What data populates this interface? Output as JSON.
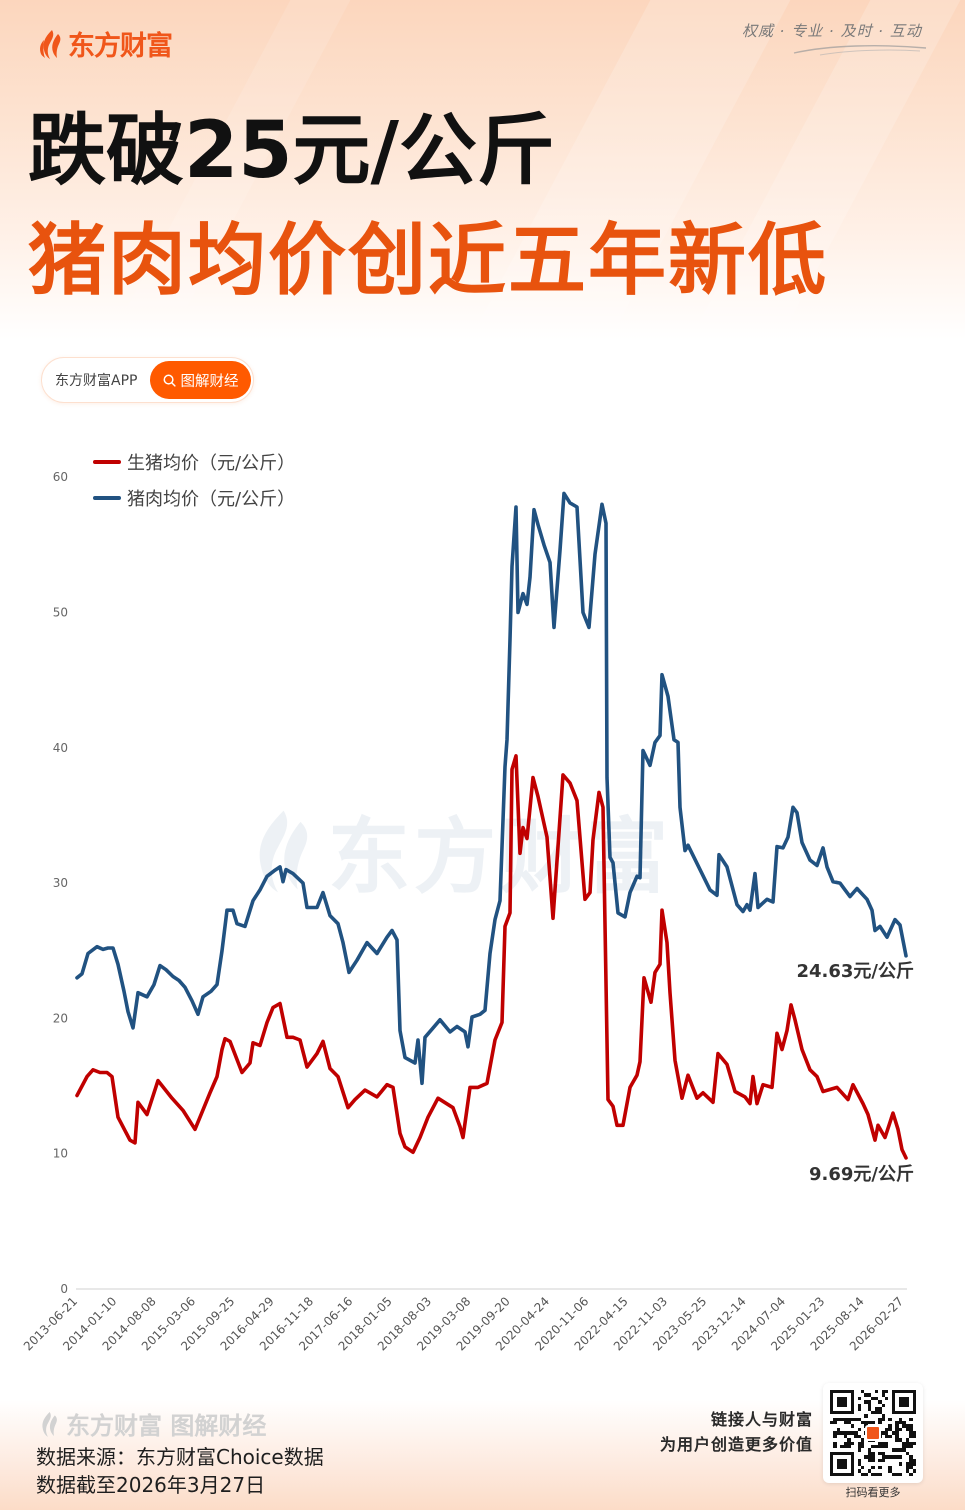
{
  "brand": {
    "logo_text": "东方财富",
    "slogan": "权威 · 专业 · 及时 · 互动",
    "colors": {
      "brand_orange": "#f0561a",
      "headline_orange": "#e8530e",
      "pill_orange": "#ff5a00"
    }
  },
  "headline": {
    "line1": "跌破25元/公斤",
    "line2": "猪肉均价创近五年新低"
  },
  "badge": {
    "left_label": "东方财富APP",
    "right_label": "图解财经",
    "right_icon": "search-icon"
  },
  "watermark": {
    "text": "东方财富"
  },
  "chart_data": {
    "type": "line",
    "title": "",
    "xlabel": "",
    "ylabel": "",
    "ylim": [
      0,
      60
    ],
    "grid": false,
    "legend_position": "top-left",
    "yaxis": {
      "ticks": [
        0,
        10,
        20,
        30,
        40,
        50,
        60
      ]
    },
    "categories": [
      "2013-06-21",
      "2014-01-10",
      "2014-08-08",
      "2015-03-06",
      "2015-09-25",
      "2016-04-29",
      "2016-11-18",
      "2017-06-16",
      "2018-01-05",
      "2018-08-03",
      "2019-03-08",
      "2019-09-20",
      "2020-04-24",
      "2020-11-06",
      "2022-04-15",
      "2022-11-03",
      "2023-05-25",
      "2023-12-14",
      "2024-07-04",
      "2025-01-23",
      "2025-08-14",
      "2026-02-27"
    ],
    "points_format": "[x_offset_px_along_axis (0-830), value]",
    "series": [
      {
        "key": "hog",
        "name": "生猪均价（元/公斤）",
        "color": "#c00000",
        "last_value": 9.69,
        "end_label": "9.69元/公斤",
        "points": [
          [
            1,
            14.3
          ],
          [
            11,
            15.7
          ],
          [
            17,
            16.2
          ],
          [
            24,
            16.0
          ],
          [
            31,
            16.0
          ],
          [
            36,
            15.7
          ],
          [
            42,
            12.7
          ],
          [
            54,
            11.0
          ],
          [
            59,
            10.8
          ],
          [
            62,
            13.8
          ],
          [
            71,
            12.9
          ],
          [
            82,
            15.4
          ],
          [
            96,
            14.1
          ],
          [
            107,
            13.2
          ],
          [
            119,
            11.8
          ],
          [
            124,
            12.7
          ],
          [
            134,
            14.5
          ],
          [
            141,
            15.7
          ],
          [
            146,
            17.7
          ],
          [
            149,
            18.5
          ],
          [
            154,
            18.3
          ],
          [
            166,
            16.0
          ],
          [
            174,
            16.7
          ],
          [
            177,
            18.2
          ],
          [
            184,
            18.0
          ],
          [
            191,
            19.7
          ],
          [
            197,
            20.8
          ],
          [
            204,
            21.1
          ],
          [
            211,
            18.6
          ],
          [
            217,
            18.6
          ],
          [
            224,
            18.4
          ],
          [
            231,
            16.4
          ],
          [
            241,
            17.4
          ],
          [
            247,
            18.3
          ],
          [
            254,
            16.3
          ],
          [
            262,
            15.7
          ],
          [
            272,
            13.4
          ],
          [
            279,
            14.0
          ],
          [
            289,
            14.7
          ],
          [
            301,
            14.2
          ],
          [
            311,
            15.1
          ],
          [
            317,
            14.9
          ],
          [
            324,
            11.5
          ],
          [
            329,
            10.5
          ],
          [
            337,
            10.1
          ],
          [
            344,
            11.2
          ],
          [
            352,
            12.7
          ],
          [
            362,
            14.1
          ],
          [
            377,
            13.4
          ],
          [
            384,
            12.0
          ],
          [
            387,
            11.2
          ],
          [
            394,
            14.9
          ],
          [
            402,
            14.9
          ],
          [
            411,
            15.2
          ],
          [
            419,
            18.4
          ],
          [
            426,
            19.7
          ],
          [
            429,
            26.8
          ],
          [
            434,
            27.8
          ],
          [
            436,
            38.4
          ],
          [
            440,
            39.4
          ],
          [
            444,
            32.2
          ],
          [
            447,
            34.1
          ],
          [
            451,
            33.3
          ],
          [
            457,
            37.8
          ],
          [
            462,
            36.4
          ],
          [
            471,
            33.4
          ],
          [
            477,
            27.4
          ],
          [
            487,
            38.0
          ],
          [
            494,
            37.4
          ],
          [
            501,
            36.1
          ],
          [
            509,
            28.8
          ],
          [
            514,
            29.3
          ],
          [
            517,
            33.2
          ],
          [
            523,
            36.7
          ],
          [
            527,
            35.6
          ],
          [
            532,
            14.0
          ],
          [
            537,
            13.5
          ],
          [
            541,
            12.1
          ],
          [
            547,
            12.1
          ],
          [
            554,
            14.9
          ],
          [
            561,
            15.8
          ],
          [
            564,
            16.8
          ],
          [
            568,
            23.0
          ],
          [
            575,
            21.2
          ],
          [
            579,
            23.4
          ],
          [
            584,
            24.0
          ],
          [
            586,
            28.0
          ],
          [
            591,
            25.6
          ],
          [
            594,
            21.9
          ],
          [
            599,
            16.9
          ],
          [
            606,
            14.1
          ],
          [
            612,
            15.8
          ],
          [
            621,
            14.1
          ],
          [
            627,
            14.5
          ],
          [
            637,
            13.8
          ],
          [
            642,
            17.4
          ],
          [
            651,
            16.6
          ],
          [
            659,
            14.6
          ],
          [
            669,
            14.2
          ],
          [
            674,
            13.7
          ],
          [
            677,
            15.7
          ],
          [
            681,
            13.7
          ],
          [
            687,
            15.1
          ],
          [
            696,
            14.9
          ],
          [
            701,
            18.9
          ],
          [
            706,
            17.7
          ],
          [
            711,
            19.1
          ],
          [
            715,
            21.0
          ],
          [
            719,
            19.9
          ],
          [
            726,
            17.7
          ],
          [
            734,
            16.2
          ],
          [
            741,
            15.7
          ],
          [
            747,
            14.6
          ],
          [
            761,
            14.9
          ],
          [
            772,
            14.0
          ],
          [
            777,
            15.1
          ],
          [
            787,
            13.7
          ],
          [
            792,
            12.9
          ],
          [
            799,
            11.0
          ],
          [
            802,
            12.1
          ],
          [
            809,
            11.2
          ],
          [
            817,
            13.0
          ],
          [
            822,
            11.8
          ],
          [
            826,
            10.3
          ],
          [
            830,
            9.69
          ]
        ]
      },
      {
        "key": "pork",
        "name": "猪肉均价（元/公斤）",
        "color": "#215281",
        "last_value": 24.63,
        "end_label": "24.63元/公斤",
        "points": [
          [
            1,
            23.0
          ],
          [
            6,
            23.3
          ],
          [
            12,
            24.8
          ],
          [
            21,
            25.3
          ],
          [
            27,
            25.1
          ],
          [
            32,
            25.2
          ],
          [
            37,
            25.2
          ],
          [
            42,
            24.0
          ],
          [
            48,
            22.0
          ],
          [
            52,
            20.5
          ],
          [
            57,
            19.3
          ],
          [
            62,
            21.9
          ],
          [
            71,
            21.6
          ],
          [
            78,
            22.5
          ],
          [
            84,
            23.9
          ],
          [
            90,
            23.6
          ],
          [
            97,
            23.1
          ],
          [
            103,
            22.8
          ],
          [
            109,
            22.3
          ],
          [
            116,
            21.3
          ],
          [
            122,
            20.3
          ],
          [
            127,
            21.6
          ],
          [
            135,
            22.0
          ],
          [
            141,
            22.5
          ],
          [
            146,
            25.0
          ],
          [
            151,
            28.0
          ],
          [
            157,
            28.0
          ],
          [
            161,
            27.0
          ],
          [
            169,
            26.8
          ],
          [
            177,
            28.7
          ],
          [
            184,
            29.5
          ],
          [
            191,
            30.5
          ],
          [
            198,
            30.9
          ],
          [
            204,
            31.2
          ],
          [
            207,
            30.1
          ],
          [
            210,
            31.0
          ],
          [
            217,
            30.7
          ],
          [
            227,
            30.0
          ],
          [
            231,
            28.2
          ],
          [
            241,
            28.2
          ],
          [
            247,
            29.3
          ],
          [
            254,
            27.6
          ],
          [
            262,
            27.0
          ],
          [
            267,
            25.6
          ],
          [
            273,
            23.4
          ],
          [
            281,
            24.3
          ],
          [
            291,
            25.6
          ],
          [
            301,
            24.8
          ],
          [
            311,
            26.0
          ],
          [
            316,
            26.5
          ],
          [
            321,
            25.8
          ],
          [
            324,
            19.1
          ],
          [
            329,
            17.1
          ],
          [
            339,
            16.7
          ],
          [
            342,
            18.4
          ],
          [
            346,
            15.2
          ],
          [
            349,
            18.6
          ],
          [
            356,
            19.2
          ],
          [
            364,
            19.9
          ],
          [
            374,
            19.0
          ],
          [
            381,
            19.4
          ],
          [
            389,
            19.0
          ],
          [
            392,
            17.9
          ],
          [
            396,
            20.1
          ],
          [
            404,
            20.3
          ],
          [
            409,
            20.6
          ],
          [
            414,
            24.8
          ],
          [
            419,
            27.3
          ],
          [
            424,
            28.7
          ],
          [
            429,
            38.6
          ],
          [
            431,
            40.6
          ],
          [
            434,
            48.0
          ],
          [
            436,
            53.4
          ],
          [
            440,
            57.8
          ],
          [
            442,
            50.0
          ],
          [
            447,
            51.4
          ],
          [
            451,
            50.6
          ],
          [
            454,
            52.6
          ],
          [
            458,
            57.6
          ],
          [
            462,
            56.5
          ],
          [
            468,
            55.0
          ],
          [
            474,
            53.7
          ],
          [
            478,
            48.9
          ],
          [
            484,
            54.6
          ],
          [
            488,
            58.8
          ],
          [
            494,
            58.1
          ],
          [
            501,
            57.8
          ],
          [
            507,
            50.0
          ],
          [
            513,
            48.9
          ],
          [
            519,
            54.3
          ],
          [
            526,
            58.0
          ],
          [
            530,
            56.6
          ],
          [
            531,
            37.8
          ],
          [
            534,
            31.9
          ],
          [
            537,
            31.5
          ],
          [
            542,
            27.8
          ],
          [
            549,
            27.5
          ],
          [
            554,
            29.3
          ],
          [
            561,
            30.5
          ],
          [
            564,
            30.4
          ],
          [
            567,
            39.8
          ],
          [
            574,
            38.7
          ],
          [
            579,
            40.4
          ],
          [
            584,
            40.9
          ],
          [
            586,
            45.4
          ],
          [
            592,
            43.8
          ],
          [
            598,
            40.6
          ],
          [
            602,
            40.4
          ],
          [
            604,
            35.6
          ],
          [
            609,
            32.4
          ],
          [
            612,
            32.8
          ],
          [
            624,
            31.0
          ],
          [
            634,
            29.5
          ],
          [
            641,
            29.1
          ],
          [
            643,
            32.1
          ],
          [
            651,
            31.2
          ],
          [
            661,
            28.4
          ],
          [
            667,
            27.9
          ],
          [
            671,
            28.4
          ],
          [
            674,
            28.0
          ],
          [
            679,
            30.7
          ],
          [
            682,
            28.2
          ],
          [
            691,
            28.8
          ],
          [
            697,
            28.6
          ],
          [
            701,
            32.7
          ],
          [
            707,
            32.6
          ],
          [
            712,
            33.4
          ],
          [
            717,
            35.6
          ],
          [
            721,
            35.2
          ],
          [
            726,
            33.0
          ],
          [
            734,
            31.7
          ],
          [
            741,
            31.3
          ],
          [
            747,
            32.6
          ],
          [
            751,
            31.2
          ],
          [
            757,
            30.1
          ],
          [
            764,
            30.0
          ],
          [
            774,
            29.0
          ],
          [
            781,
            29.6
          ],
          [
            791,
            28.8
          ],
          [
            796,
            28.0
          ],
          [
            799,
            26.5
          ],
          [
            804,
            26.8
          ],
          [
            811,
            26.0
          ],
          [
            819,
            27.3
          ],
          [
            824,
            26.9
          ],
          [
            830,
            24.63
          ]
        ]
      }
    ],
    "annotations": [
      "24.63元/公斤",
      "9.69元/公斤"
    ]
  },
  "legend": {
    "items": [
      {
        "label": "生猪均价（元/公斤）",
        "color": "#c00000"
      },
      {
        "label": "猪肉均价（元/公斤）",
        "color": "#215281"
      }
    ]
  },
  "end_labels": {
    "pork": "24.63元/公斤",
    "hog": "9.69元/公斤"
  },
  "footer": {
    "logo_text": "东方财富 图解财经",
    "source": "数据来源：东方财富Choice数据",
    "as_of": "数据截至2026年3月27日",
    "tagline1": "链接人与财富",
    "tagline2": "为用户创造更多价值",
    "qr_caption": "扫码看更多"
  }
}
